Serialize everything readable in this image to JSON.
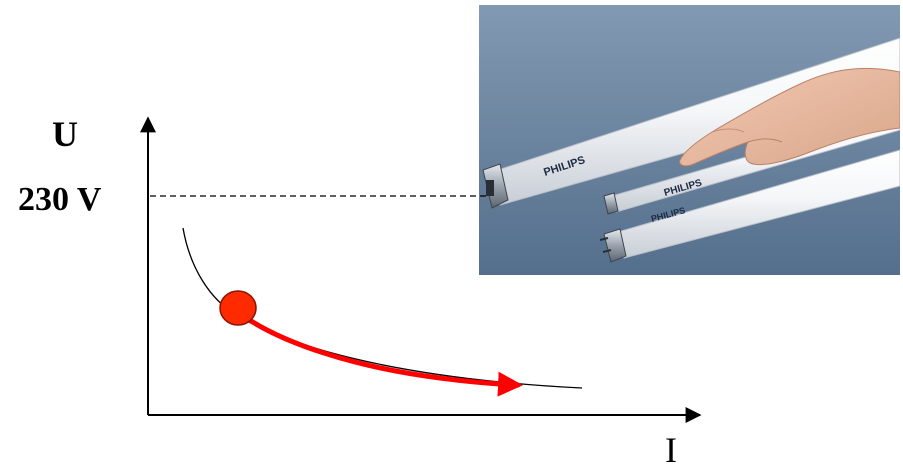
{
  "diagram": {
    "y_axis_label": "U",
    "x_axis_label": "I",
    "voltage_label": "230 V",
    "photo": {
      "brand_text": [
        "PHILIPS",
        "PHILIPS",
        "PHILIPS"
      ]
    },
    "colors": {
      "curve": "#000000",
      "arrow": "#ff0000",
      "marker_fill": "#ff2a00",
      "marker_stroke": "#8b1500",
      "photo_bg_top": "#7e94ad",
      "photo_bg_bottom": "#587390"
    }
  }
}
